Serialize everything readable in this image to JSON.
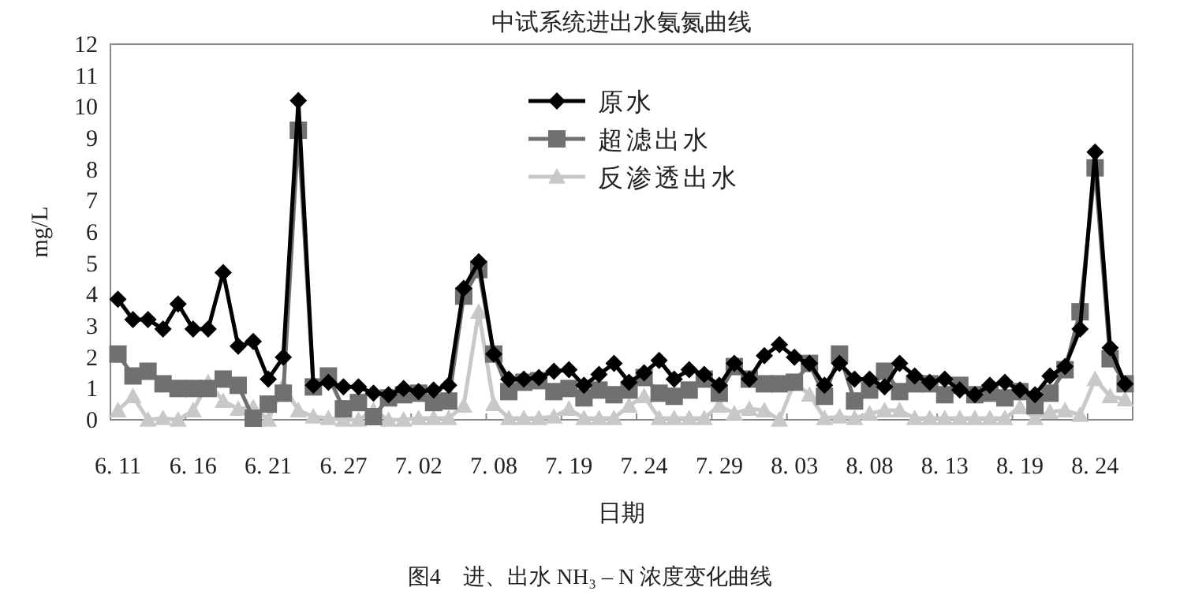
{
  "chart_data": {
    "type": "line",
    "title": "中试系统进出水氨氮曲线",
    "xlabel": "日期",
    "ylabel": "mg/L",
    "annotations": [
      "图4　进、出水 NH₃ – N 浓度变化曲线"
    ],
    "categories": [
      "6. 11",
      null,
      null,
      null,
      null,
      "6. 16",
      null,
      null,
      null,
      null,
      "6. 21",
      null,
      null,
      null,
      null,
      "6. 27",
      null,
      null,
      null,
      null,
      "7. 02",
      null,
      null,
      null,
      null,
      "7. 08",
      null,
      null,
      null,
      null,
      "7. 19",
      null,
      null,
      null,
      null,
      "7. 24",
      null,
      null,
      null,
      null,
      "7. 29",
      null,
      null,
      null,
      null,
      "8. 03",
      null,
      null,
      null,
      null,
      "8. 08",
      null,
      null,
      null,
      null,
      "8. 13",
      null,
      null,
      null,
      null,
      "8. 19",
      null,
      null,
      null,
      null,
      "8. 24",
      null,
      null
    ],
    "series": [
      {
        "name": "原水",
        "color": "#000000",
        "marker": "diamond",
        "values": [
          3.85,
          3.2,
          3.2,
          2.9,
          3.7,
          2.9,
          2.9,
          4.7,
          2.35,
          2.5,
          1.3,
          2.0,
          10.2,
          1.1,
          1.2,
          1.05,
          1.05,
          0.85,
          0.8,
          1.0,
          0.9,
          0.95,
          1.1,
          4.2,
          5.05,
          2.1,
          1.3,
          1.3,
          1.35,
          1.55,
          1.6,
          1.1,
          1.45,
          1.8,
          1.2,
          1.5,
          1.9,
          1.3,
          1.6,
          1.45,
          1.1,
          1.8,
          1.3,
          2.05,
          2.4,
          2.0,
          1.8,
          1.1,
          1.8,
          1.3,
          1.3,
          1.05,
          1.8,
          1.4,
          1.2,
          1.3,
          0.95,
          0.8,
          1.1,
          1.2,
          0.95,
          0.8,
          1.4,
          1.7,
          2.9,
          8.55,
          2.3,
          1.15
        ]
      },
      {
        "name": "超滤出水",
        "color": "#707070",
        "marker": "square",
        "values": [
          2.1,
          1.4,
          1.55,
          1.15,
          1.0,
          1.0,
          1.0,
          1.3,
          1.1,
          0.05,
          0.5,
          0.85,
          9.25,
          1.05,
          1.4,
          0.35,
          0.55,
          0.1,
          0.7,
          0.8,
          0.85,
          0.55,
          0.6,
          3.95,
          4.8,
          2.1,
          0.9,
          1.2,
          1.25,
          0.9,
          1.0,
          0.7,
          0.95,
          0.8,
          0.95,
          1.35,
          0.85,
          0.75,
          0.95,
          1.3,
          0.85,
          1.7,
          1.3,
          1.15,
          1.15,
          1.2,
          1.8,
          0.75,
          2.1,
          0.6,
          0.95,
          1.55,
          0.9,
          1.15,
          1.15,
          0.8,
          1.1,
          0.8,
          0.85,
          0.7,
          0.9,
          0.45,
          0.85,
          1.6,
          3.45,
          8.05,
          1.95,
          1.15
        ]
      },
      {
        "name": "反渗透出水",
        "color": "#c8c8c8",
        "marker": "triangle",
        "values": [
          0.3,
          0.75,
          0.0,
          0.05,
          0.0,
          0.3,
          1.2,
          0.6,
          0.35,
          0.4,
          0.0,
          1.1,
          0.3,
          0.1,
          0.05,
          0.0,
          0.0,
          0.3,
          0.0,
          0.0,
          0.05,
          0.05,
          0.05,
          0.45,
          3.45,
          0.5,
          0.05,
          0.05,
          0.05,
          0.1,
          0.35,
          0.05,
          0.05,
          0.05,
          0.45,
          0.75,
          0.05,
          0.05,
          0.05,
          0.05,
          0.45,
          0.2,
          0.35,
          0.3,
          0.0,
          1.2,
          0.8,
          0.05,
          0.1,
          0.05,
          0.2,
          0.3,
          0.3,
          0.05,
          0.05,
          0.05,
          0.05,
          0.05,
          0.05,
          0.05,
          0.4,
          0.05,
          0.25,
          0.3,
          0.15,
          1.3,
          0.75,
          0.65
        ]
      }
    ],
    "ylim": [
      0,
      12
    ],
    "yticks": [
      0,
      1,
      2,
      3,
      4,
      5,
      6,
      7,
      8,
      9,
      10,
      11,
      12
    ],
    "legend": "top"
  }
}
